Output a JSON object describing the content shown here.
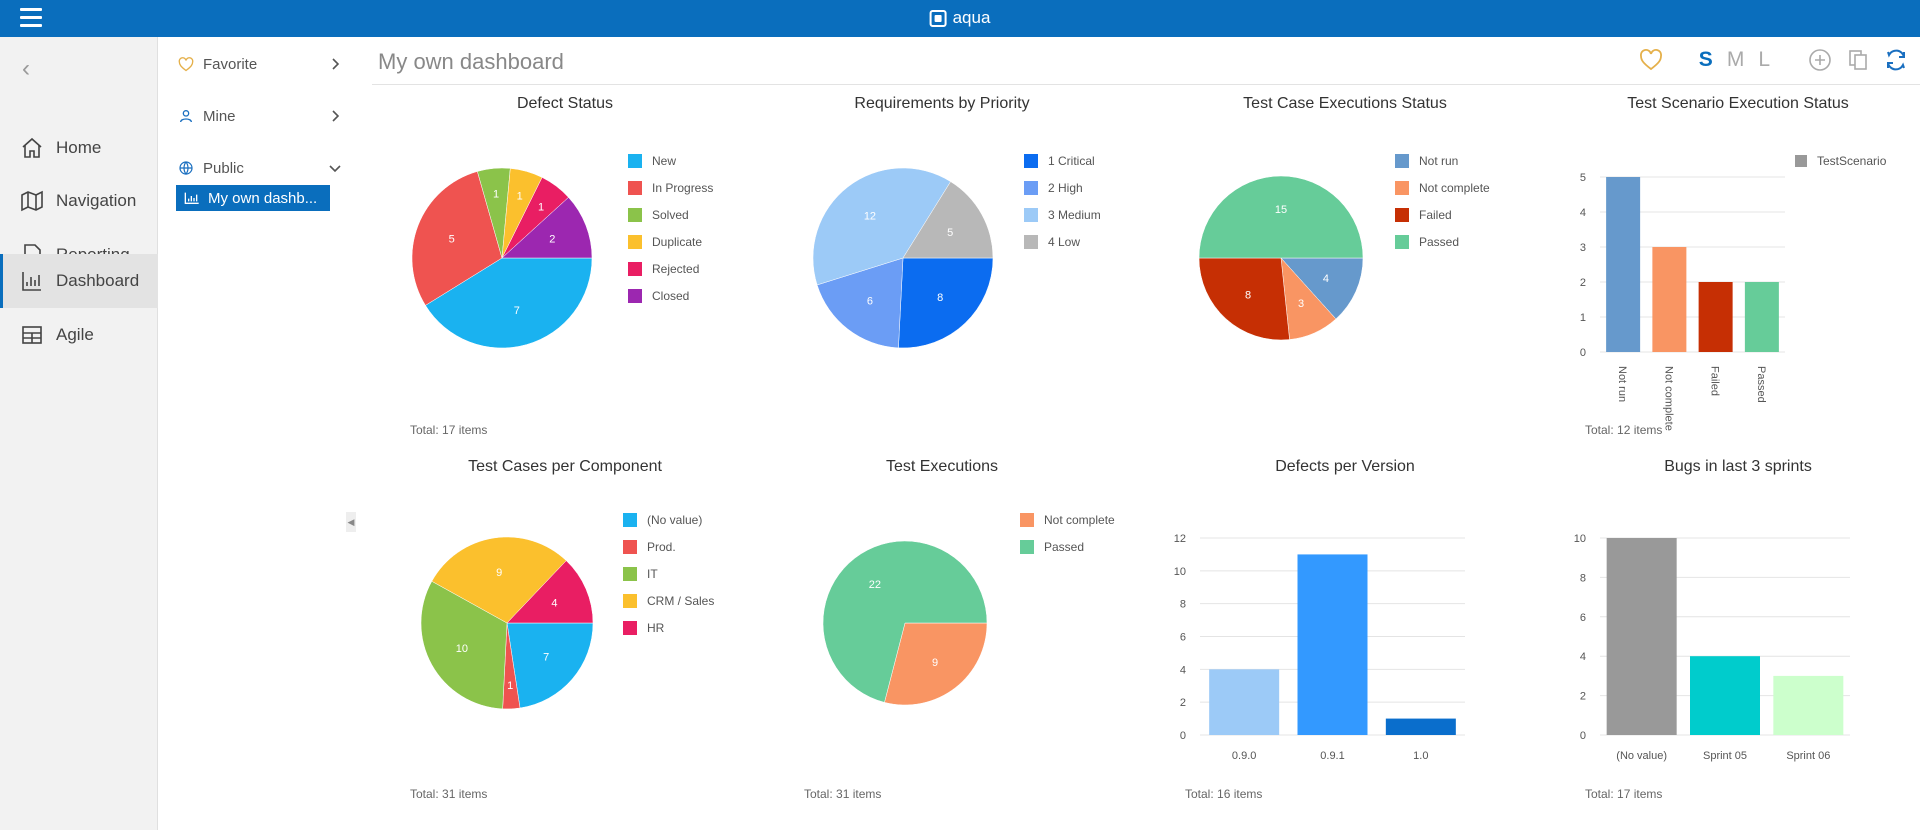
{
  "app": {
    "title": "aqua"
  },
  "sidebar": {
    "items": [
      {
        "label": "Home",
        "icon": "home-icon"
      },
      {
        "label": "Navigation",
        "icon": "map-icon"
      },
      {
        "label": "Reporting",
        "icon": "report-icon"
      },
      {
        "label": "Dashboard",
        "icon": "dashboard-icon",
        "active": true
      },
      {
        "label": "Agile",
        "icon": "board-icon"
      }
    ]
  },
  "tree": {
    "favorite": "Favorite",
    "mine": "Mine",
    "public": "Public",
    "selected": "My own dashb..."
  },
  "header": {
    "title": "My own dashboard",
    "sizes": [
      "S",
      "M",
      "L"
    ],
    "active_size": "S"
  },
  "colors": {
    "brand": "#0a6ebd"
  },
  "chart_data": [
    {
      "type": "pie",
      "title": "Defect Status",
      "series": [
        {
          "name": "New",
          "value": 7,
          "color": "#1ab2f0"
        },
        {
          "name": "In Progress",
          "value": 5,
          "color": "#ef5350"
        },
        {
          "name": "Solved",
          "value": 1,
          "color": "#8bc34a"
        },
        {
          "name": "Duplicate",
          "value": 1,
          "color": "#fbc02d"
        },
        {
          "name": "Rejected",
          "value": 1,
          "color": "#e91e63"
        },
        {
          "name": "Closed",
          "value": 2,
          "color": "#9c27b0"
        }
      ],
      "total": "Total: 17 items"
    },
    {
      "type": "pie",
      "title": "Requirements by Priority",
      "series": [
        {
          "name": "1 Critical",
          "value": 8,
          "color": "#0b6cf0"
        },
        {
          "name": "2 High",
          "value": 6,
          "color": "#6b9df5"
        },
        {
          "name": "3 Medium",
          "value": 12,
          "color": "#9ccaf7"
        },
        {
          "name": "4 Low",
          "value": 5,
          "color": "#b8b8b8"
        }
      ]
    },
    {
      "type": "pie",
      "title": "Test Case Executions Status",
      "series": [
        {
          "name": "Not run",
          "value": 4,
          "color": "#6699cc"
        },
        {
          "name": "Not complete",
          "value": 3,
          "color": "#f99563"
        },
        {
          "name": "Failed",
          "value": 8,
          "color": "#c62f04"
        },
        {
          "name": "Passed",
          "value": 15,
          "color": "#66cc99"
        }
      ]
    },
    {
      "type": "bar",
      "title": "Test Scenario Execution Status",
      "categories": [
        "Not run",
        "Not complete",
        "Failed",
        "Passed"
      ],
      "values": [
        5,
        3,
        2,
        2
      ],
      "colors": [
        "#6699cc",
        "#f99563",
        "#c62f04",
        "#66cc99"
      ],
      "legend": [
        {
          "name": "TestScenario",
          "color": "#999999"
        }
      ],
      "ylim": [
        0,
        5
      ],
      "yticks": [
        "0",
        "1",
        "2",
        "3",
        "4",
        "5"
      ],
      "total": "Total: 12 items"
    },
    {
      "type": "pie",
      "title": "Test Cases per Component",
      "series": [
        {
          "name": "(No value)",
          "value": 7,
          "color": "#1ab2f0"
        },
        {
          "name": "Prod.",
          "value": 1,
          "color": "#ef5350"
        },
        {
          "name": "IT",
          "value": 10,
          "color": "#8bc34a"
        },
        {
          "name": "CRM / Sales",
          "value": 9,
          "color": "#fbc02d"
        },
        {
          "name": "HR",
          "value": 4,
          "color": "#e91e63"
        }
      ],
      "total": "Total: 31 items"
    },
    {
      "type": "pie",
      "title": "Test Executions",
      "series": [
        {
          "name": "Not complete",
          "value": 9,
          "color": "#f99563"
        },
        {
          "name": "Passed",
          "value": 22,
          "color": "#66cc99"
        }
      ],
      "total": "Total: 31 items"
    },
    {
      "type": "bar",
      "title": "Defects per Version",
      "categories": [
        "0.9.0",
        "0.9.1",
        "1.0"
      ],
      "values": [
        4,
        11,
        1
      ],
      "colors": [
        "#9ccaf7",
        "#3399ff",
        "#0a6ecc"
      ],
      "ylim": [
        0,
        12
      ],
      "yticks": [
        "0",
        "2",
        "4",
        "6",
        "8",
        "10",
        "12"
      ],
      "total": "Total: 16 items"
    },
    {
      "type": "bar",
      "title": "Bugs in last 3 sprints",
      "categories": [
        "(No value)",
        "Sprint 05",
        "Sprint 06"
      ],
      "values": [
        10,
        4,
        3
      ],
      "colors": [
        "#999999",
        "#00cccc",
        "#ccffcc"
      ],
      "ylim": [
        0,
        10
      ],
      "yticks": [
        "0",
        "2",
        "4",
        "6",
        "8",
        "10"
      ],
      "total": "Total: 17 items"
    }
  ]
}
